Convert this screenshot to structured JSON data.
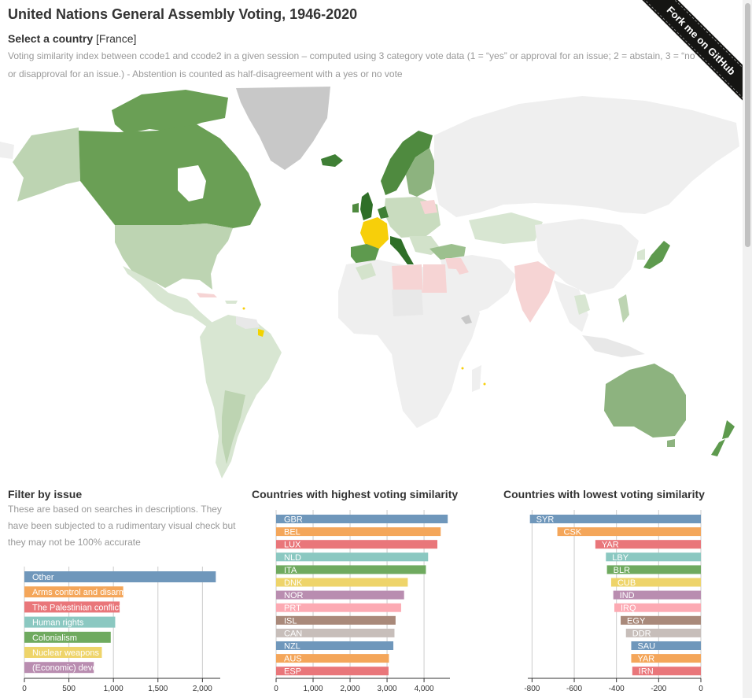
{
  "page": {
    "title": "United Nations General Assembly Voting, 1946-2020",
    "select_label": "Select a country",
    "selected_country": "[France]",
    "description": "Voting similarity index between ccode1 and ccode2 in a given session – computed using 3 category vote data (1 = “yes” or approval for an issue; 2 = abstain, 3 = “no” or disapproval for an issue.) - Abstention is counted as half-disagreement with a yes or no vote",
    "ribbon": "Fork me on GitHub"
  },
  "filter": {
    "title": "Filter by issue",
    "note": "These are based on searches in descriptions. They have been subjected to a rudimentary visual check but they may not be 100% accurate"
  },
  "highest": {
    "title": "Countries with highest voting similarity"
  },
  "lowest": {
    "title": "Countries with lowest voting similarity"
  },
  "colors": [
    "#6f97bb",
    "#f4a65a",
    "#e9767a",
    "#8bc8c1",
    "#6faa5f",
    "#eed46a",
    "#b98db0",
    "#fcaab3",
    "#a9897a",
    "#c7beba"
  ],
  "chart_data": [
    {
      "type": "bar",
      "orientation": "horizontal",
      "categories": [
        "Other",
        "Arms control and disarmament",
        "The Palestinian conflict",
        "Human rights",
        "Colonialism",
        "Nuclear weapons",
        "(Economic) development"
      ],
      "values": [
        2150,
        1110,
        1070,
        1020,
        970,
        870,
        780
      ],
      "xlim": [
        0,
        2200
      ],
      "xticks": [
        0,
        500,
        1000,
        1500,
        2000
      ],
      "xtick_labels": [
        "0",
        "500",
        "1,000",
        "1,500",
        "2,000"
      ]
    },
    {
      "type": "bar",
      "orientation": "horizontal",
      "categories": [
        "GBR",
        "BEL",
        "LUX",
        "NLD",
        "ITA",
        "DNK",
        "NOR",
        "PRT",
        "ISL",
        "CAN",
        "NZL",
        "AUS",
        "ESP"
      ],
      "values": [
        4640,
        4450,
        4360,
        4110,
        4050,
        3560,
        3460,
        3380,
        3230,
        3200,
        3170,
        3050,
        3040
      ],
      "xlim": [
        0,
        4700
      ],
      "xticks": [
        0,
        1000,
        2000,
        3000,
        4000
      ],
      "xtick_labels": [
        "0",
        "1,000",
        "2,000",
        "3,000",
        "4,000"
      ]
    },
    {
      "type": "bar",
      "orientation": "horizontal",
      "categories": [
        "SYR",
        "CSK",
        "YAR",
        "LBY",
        "BLR",
        "CUB",
        "IND",
        "IRQ",
        "EGY",
        "DDR",
        "SAU",
        "YAR",
        "IRN"
      ],
      "values": [
        -810,
        -680,
        -500,
        -450,
        -445,
        -425,
        -415,
        -410,
        -380,
        -355,
        -330,
        -330,
        -325
      ],
      "xlim": [
        -820,
        0
      ],
      "xticks": [
        -800,
        -600,
        -400,
        -200,
        0
      ],
      "xtick_labels": [
        "-800",
        "-600",
        "-400",
        "-200",
        "0"
      ]
    }
  ]
}
